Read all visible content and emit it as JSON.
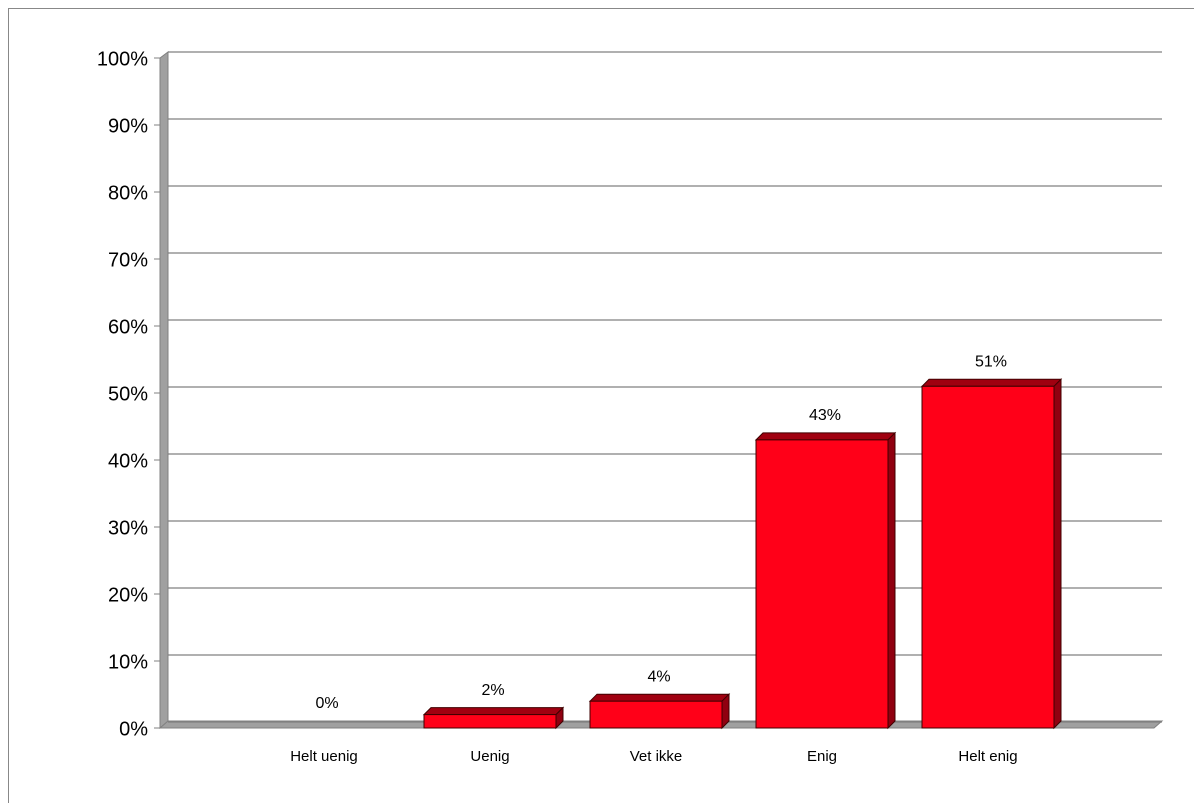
{
  "chart_data": {
    "type": "bar",
    "categories": [
      "Helt uenig",
      "Uenig",
      "Vet ikke",
      "Enig",
      "Helt enig"
    ],
    "values": [
      0,
      2,
      4,
      43,
      51
    ],
    "value_labels": [
      "0%",
      "2%",
      "4%",
      "43%",
      "51%"
    ],
    "color": "#ff0018",
    "ylim": [
      0,
      100
    ],
    "yticks": [
      {
        "value": 0,
        "label": "0%"
      },
      {
        "value": 10,
        "label": "10%"
      },
      {
        "value": 20,
        "label": "20%"
      },
      {
        "value": 30,
        "label": "30%"
      },
      {
        "value": 40,
        "label": "40%"
      },
      {
        "value": 50,
        "label": "50%"
      },
      {
        "value": 60,
        "label": "60%"
      },
      {
        "value": 70,
        "label": "70%"
      },
      {
        "value": 80,
        "label": "80%"
      },
      {
        "value": 90,
        "label": "90%"
      },
      {
        "value": 100,
        "label": "100%"
      }
    ],
    "grid": true
  }
}
